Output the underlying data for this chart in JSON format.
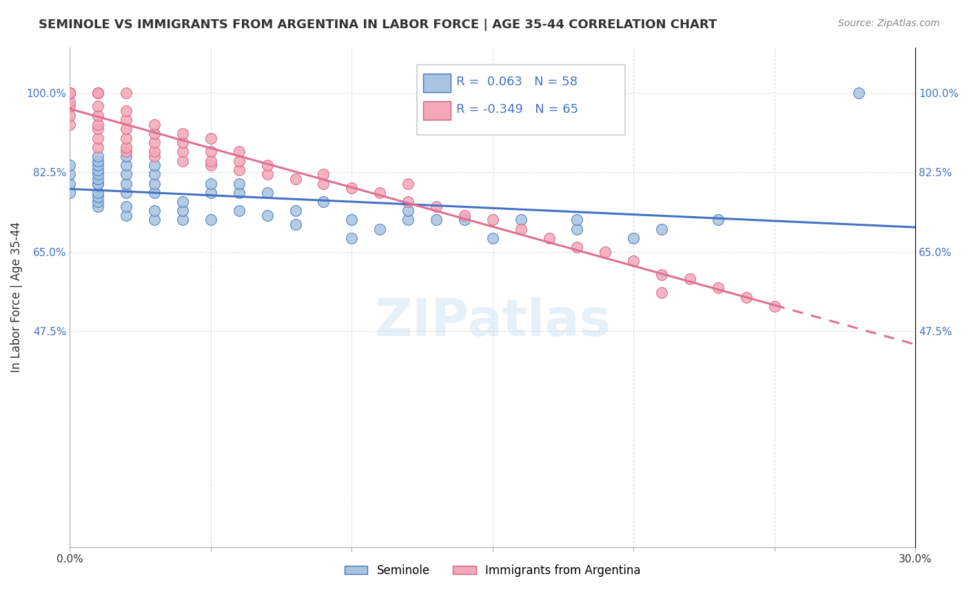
{
  "title": "SEMINOLE VS IMMIGRANTS FROM ARGENTINA IN LABOR FORCE | AGE 35-44 CORRELATION CHART",
  "source": "Source: ZipAtlas.com",
  "ylabel": "In Labor Force | Age 35-44",
  "xlim": [
    0.0,
    0.3
  ],
  "ylim": [
    0.0,
    1.1
  ],
  "yticks": [
    0.475,
    0.65,
    0.825,
    1.0
  ],
  "ytick_labels": [
    "47.5%",
    "65.0%",
    "82.5%",
    "100.0%"
  ],
  "xticks": [
    0.0,
    0.05,
    0.1,
    0.15,
    0.2,
    0.25,
    0.3
  ],
  "xtick_labels": [
    "0.0%",
    "",
    "",
    "",
    "",
    "",
    "30.0%"
  ],
  "blue_R": 0.063,
  "blue_N": 58,
  "pink_R": -0.349,
  "pink_N": 65,
  "blue_color": "#a8c4e0",
  "pink_color": "#f4a7b9",
  "blue_line_color": "#4472c4",
  "pink_line_color": "#e07090",
  "pink_edge_color": "#d06080",
  "legend_text_color": "#4472c4",
  "watermark": "ZIPatlas",
  "blue_scatter_x": [
    0.0,
    0.0,
    0.0,
    0.0,
    0.01,
    0.01,
    0.01,
    0.01,
    0.01,
    0.01,
    0.01,
    0.01,
    0.01,
    0.01,
    0.01,
    0.01,
    0.02,
    0.02,
    0.02,
    0.02,
    0.02,
    0.02,
    0.02,
    0.03,
    0.03,
    0.03,
    0.03,
    0.03,
    0.03,
    0.04,
    0.04,
    0.04,
    0.05,
    0.05,
    0.05,
    0.06,
    0.06,
    0.06,
    0.07,
    0.07,
    0.08,
    0.08,
    0.09,
    0.1,
    0.1,
    0.11,
    0.12,
    0.12,
    0.13,
    0.14,
    0.15,
    0.16,
    0.18,
    0.18,
    0.2,
    0.21,
    0.23,
    0.28
  ],
  "blue_scatter_y": [
    0.78,
    0.8,
    0.82,
    0.84,
    0.75,
    0.76,
    0.77,
    0.78,
    0.8,
    0.8,
    0.81,
    0.82,
    0.83,
    0.84,
    0.85,
    0.86,
    0.73,
    0.75,
    0.78,
    0.8,
    0.82,
    0.84,
    0.86,
    0.72,
    0.74,
    0.78,
    0.8,
    0.82,
    0.84,
    0.72,
    0.74,
    0.76,
    0.72,
    0.78,
    0.8,
    0.74,
    0.78,
    0.8,
    0.73,
    0.78,
    0.71,
    0.74,
    0.76,
    0.68,
    0.72,
    0.7,
    0.72,
    0.74,
    0.72,
    0.72,
    0.68,
    0.72,
    0.7,
    0.72,
    0.68,
    0.7,
    0.72,
    1.0
  ],
  "pink_scatter_x": [
    0.0,
    0.0,
    0.0,
    0.0,
    0.0,
    0.0,
    0.0,
    0.0,
    0.0,
    0.0,
    0.01,
    0.01,
    0.01,
    0.01,
    0.01,
    0.01,
    0.01,
    0.01,
    0.01,
    0.02,
    0.02,
    0.02,
    0.02,
    0.02,
    0.02,
    0.02,
    0.03,
    0.03,
    0.03,
    0.03,
    0.03,
    0.04,
    0.04,
    0.04,
    0.04,
    0.05,
    0.05,
    0.05,
    0.05,
    0.06,
    0.06,
    0.06,
    0.07,
    0.07,
    0.08,
    0.09,
    0.09,
    0.1,
    0.11,
    0.12,
    0.12,
    0.13,
    0.14,
    0.15,
    0.16,
    0.17,
    0.18,
    0.19,
    0.2,
    0.21,
    0.22,
    0.23,
    0.24,
    0.25,
    0.21
  ],
  "pink_scatter_y": [
    0.93,
    0.95,
    0.97,
    0.98,
    1.0,
    1.0,
    1.0,
    1.0,
    1.0,
    1.0,
    0.88,
    0.9,
    0.92,
    0.93,
    0.95,
    0.97,
    1.0,
    1.0,
    1.0,
    0.87,
    0.88,
    0.9,
    0.92,
    0.94,
    0.96,
    1.0,
    0.86,
    0.87,
    0.89,
    0.91,
    0.93,
    0.85,
    0.87,
    0.89,
    0.91,
    0.84,
    0.85,
    0.87,
    0.9,
    0.83,
    0.85,
    0.87,
    0.82,
    0.84,
    0.81,
    0.8,
    0.82,
    0.79,
    0.78,
    0.76,
    0.8,
    0.75,
    0.73,
    0.72,
    0.7,
    0.68,
    0.66,
    0.65,
    0.63,
    0.6,
    0.59,
    0.57,
    0.55,
    0.53,
    0.56
  ]
}
